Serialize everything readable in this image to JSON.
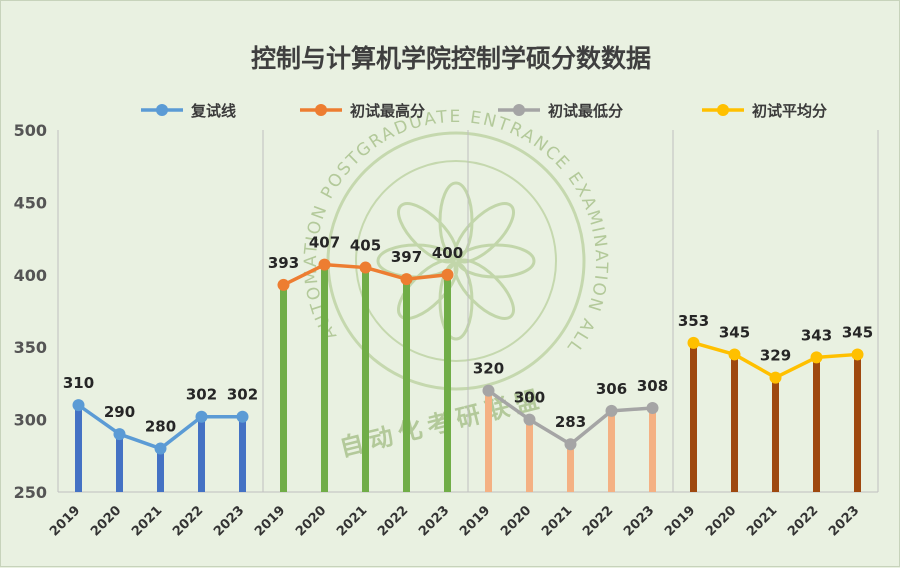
{
  "chart_data": {
    "type": "line",
    "title": "控制与计算机学院控制学硕分数数据",
    "ylim": [
      250,
      500
    ],
    "yticks": [
      250,
      300,
      350,
      400,
      450,
      500
    ],
    "grid": false,
    "legend_position": "top",
    "groups": [
      {
        "name": "复试线",
        "categories": [
          "2019",
          "2020",
          "2021",
          "2022",
          "2023"
        ],
        "values": [
          310,
          290,
          280,
          302,
          302
        ],
        "line_color": "#5b9bd5",
        "bar_color": "#4472c4"
      },
      {
        "name": "初试最高分",
        "categories": [
          "2019",
          "2020",
          "2021",
          "2022",
          "2023"
        ],
        "values": [
          393,
          407,
          405,
          397,
          400
        ],
        "line_color": "#ed7d31",
        "bar_color": "#70ad47"
      },
      {
        "name": "初试最低分",
        "categories": [
          "2019",
          "2020",
          "2021",
          "2022",
          "2023"
        ],
        "values": [
          320,
          300,
          283,
          306,
          308
        ],
        "line_color": "#a5a5a5",
        "bar_color": "#f4b183"
      },
      {
        "name": "初试平均分",
        "categories": [
          "2019",
          "2020",
          "2021",
          "2022",
          "2023"
        ],
        "values": [
          353,
          345,
          329,
          343,
          345
        ],
        "line_color": "#ffc000",
        "bar_color": "#9e480e"
      }
    ]
  },
  "watermark": {
    "text_en": "AUTOMATION POSTGRADUATE ENTRANCE EXAMINATION ALLIANCE",
    "text_cn": "自动化考研联盟"
  }
}
